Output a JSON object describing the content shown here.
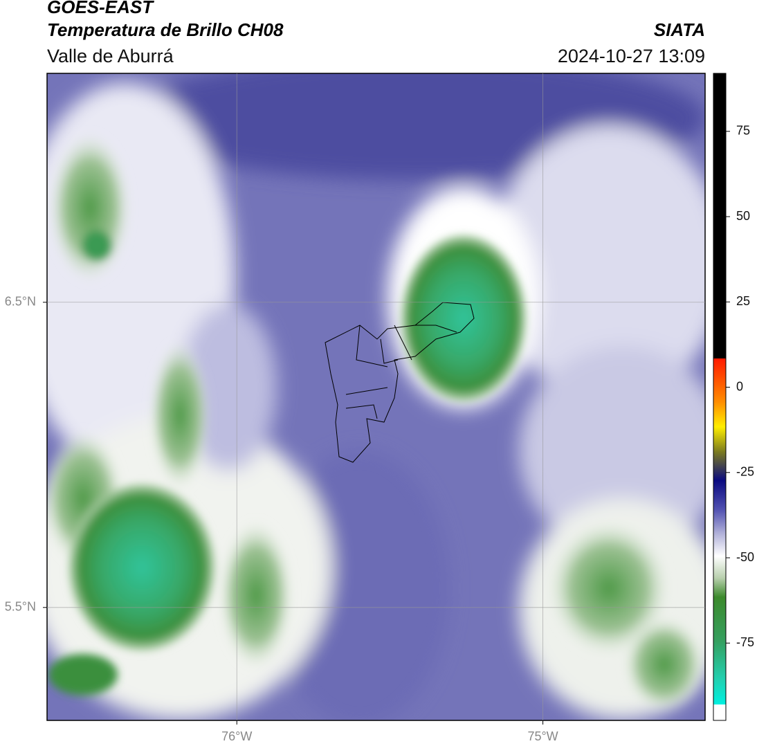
{
  "header": {
    "title": "GOES-EAST",
    "subtitle": "Temperatura de Brillo CH08",
    "region": "Valle de Aburrá",
    "source": "SIATA",
    "datetime": "2024-10-27 13:09"
  },
  "map": {
    "xlim": [
      -76.62,
      -74.47
    ],
    "ylim": [
      5.13,
      7.25
    ],
    "xticks": [
      {
        "value": -76,
        "label": "76°W"
      },
      {
        "value": -75,
        "label": "75°W"
      }
    ],
    "yticks": [
      {
        "value": 6.5,
        "label": "6.5°N"
      },
      {
        "value": 5.5,
        "label": "5.5°N"
      }
    ],
    "grid": true
  },
  "colorbar": {
    "lim": [
      -93,
      92
    ],
    "ticks": [
      75,
      50,
      25,
      0,
      -25,
      -50,
      -75
    ]
  }
}
